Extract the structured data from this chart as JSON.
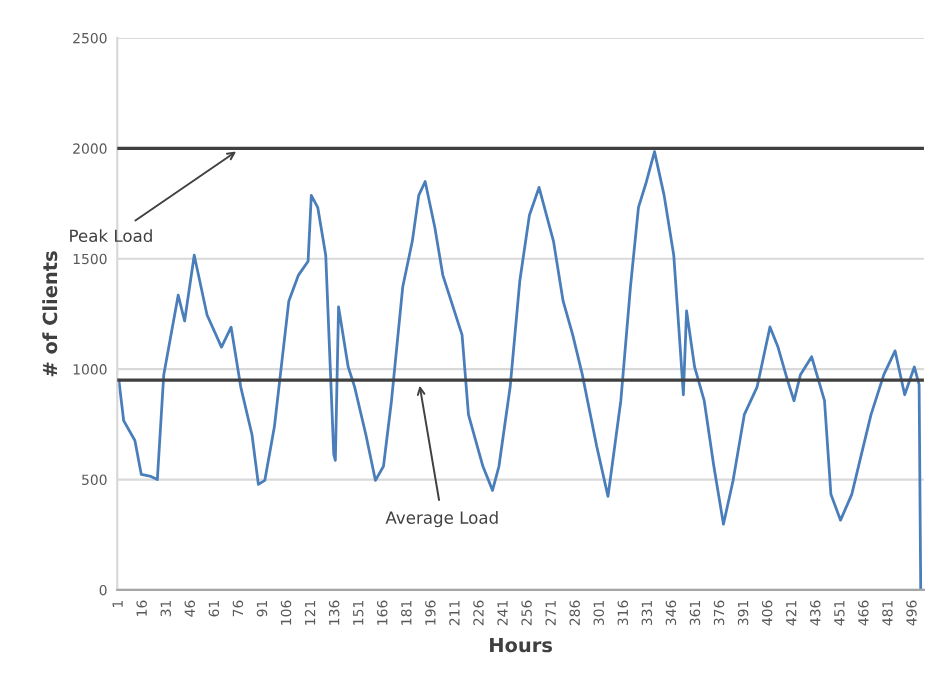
{
  "chart_data": {
    "type": "line",
    "xlabel": "Hours",
    "ylabel": "# of Clients",
    "x": [
      1,
      4,
      11,
      15,
      21,
      25,
      29,
      38,
      42,
      48,
      56,
      65,
      71,
      77,
      84,
      88,
      92,
      98,
      107,
      113,
      119,
      121,
      125,
      130,
      133,
      135,
      136,
      138,
      140,
      144,
      148,
      155,
      161,
      166,
      171,
      178,
      184,
      188,
      192,
      198,
      203,
      215,
      219,
      228,
      234,
      238,
      245,
      251,
      257,
      263,
      272,
      278,
      284,
      290,
      299,
      306,
      314,
      320,
      325,
      330,
      335,
      341,
      347,
      351,
      353,
      355,
      360,
      366,
      372,
      378,
      384,
      391,
      399,
      407,
      412,
      418,
      422,
      426,
      433,
      441,
      445,
      451,
      458,
      464,
      470,
      478,
      485,
      491,
      497,
      500,
      501
    ],
    "series": [
      {
        "color": "#4a7ebb",
        "values": [
          950,
          767,
          677,
          523,
          514,
          500,
          975,
          1335,
          1218,
          1516,
          1245,
          1100,
          1190,
          920,
          704,
          478,
          496,
          740,
          1309,
          1426,
          1489,
          1787,
          1733,
          1516,
          975,
          614,
          587,
          1282,
          1191,
          1010,
          920,
          704,
          496,
          560,
          857,
          1372,
          1580,
          1787,
          1850,
          1643,
          1426,
          1155,
          794,
          560,
          451,
          560,
          920,
          1399,
          1697,
          1823,
          1580,
          1309,
          1155,
          975,
          650,
          424,
          857,
          1372,
          1733,
          1850,
          1985,
          1787,
          1516,
          1100,
          884,
          1264,
          1010,
          857,
          560,
          298,
          496,
          794,
          920,
          1191,
          1100,
          948,
          857,
          975,
          1056,
          857,
          433,
          316,
          433,
          614,
          794,
          975,
          1083,
          884,
          1010,
          930,
          0
        ]
      }
    ],
    "xlim": [
      0,
      503
    ],
    "ylim": [
      0,
      2500
    ],
    "yticks": [
      0,
      500,
      1000,
      1500,
      2000,
      2500
    ],
    "xticks": [
      1,
      16,
      31,
      46,
      61,
      76,
      91,
      106,
      121,
      136,
      151,
      166,
      181,
      196,
      211,
      226,
      241,
      256,
      271,
      286,
      301,
      316,
      331,
      346,
      361,
      376,
      391,
      406,
      421,
      436,
      451,
      466,
      481,
      496
    ],
    "grid": "y",
    "legend": false,
    "marker": "none",
    "line_style": "solid",
    "ref_lines": [
      {
        "axis": "y",
        "value": 2000,
        "color": "#404040"
      },
      {
        "axis": "y",
        "value": 950,
        "color": "#404040"
      }
    ],
    "annotations": [
      {
        "text": "Peak Load",
        "x": 77,
        "y": 2000
      },
      {
        "text": "Average Load",
        "x": 188,
        "y": 950
      }
    ]
  }
}
